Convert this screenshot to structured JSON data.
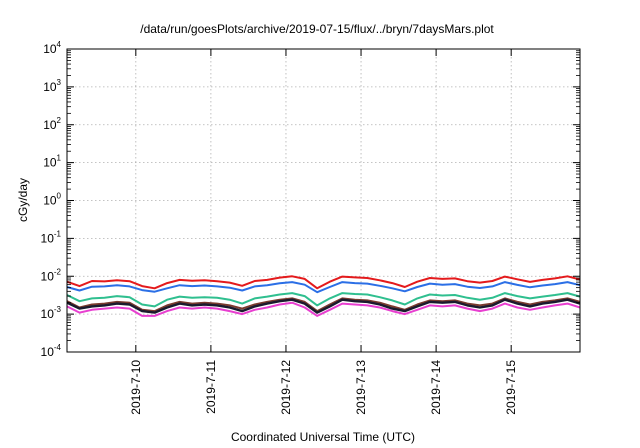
{
  "chart_data": {
    "type": "line",
    "title": "/data/run/goesPlots/archive/2019-07-15/flux/../bryn/7daysMars.plot",
    "xlabel": "Coordinated Universal Time (UTC)",
    "ylabel": "cGy/day",
    "y_scale": "log",
    "ylim": [
      0.0001,
      10000
    ],
    "y_ticks": [
      {
        "base": "10",
        "exp": "4"
      },
      {
        "base": "10",
        "exp": "3"
      },
      {
        "base": "10",
        "exp": "2"
      },
      {
        "base": "10",
        "exp": "1"
      },
      {
        "base": "10",
        "exp": "0"
      },
      {
        "base": "10",
        "exp": "-1"
      },
      {
        "base": "10",
        "exp": "-2"
      },
      {
        "base": "10",
        "exp": "-3"
      },
      {
        "base": "10",
        "exp": "-4"
      }
    ],
    "xlim": [
      "2019-07-09T02:00",
      "2019-07-15T22:00"
    ],
    "x_ticks": [
      "2019-7-10",
      "2019-7-11",
      "2019-7-12",
      "2019-7-13",
      "2019-7-14",
      "2019-7-15"
    ],
    "grid": true,
    "legend": "none",
    "series_colors": [
      "#e41a1c",
      "#2b6fe6",
      "#2fbf8f",
      "#7a3b2e",
      "#1a1a2e",
      "#e83fd0"
    ],
    "x": [
      "2019-07-09T02:00",
      "2019-07-09T06:00",
      "2019-07-09T10:00",
      "2019-07-09T14:00",
      "2019-07-09T18:00",
      "2019-07-09T22:00",
      "2019-07-10T02:00",
      "2019-07-10T06:00",
      "2019-07-10T10:00",
      "2019-07-10T14:00",
      "2019-07-10T18:00",
      "2019-07-10T22:00",
      "2019-07-11T02:00",
      "2019-07-11T06:00",
      "2019-07-11T10:00",
      "2019-07-11T14:00",
      "2019-07-11T18:00",
      "2019-07-11T22:00",
      "2019-07-12T02:00",
      "2019-07-12T06:00",
      "2019-07-12T10:00",
      "2019-07-12T14:00",
      "2019-07-12T18:00",
      "2019-07-12T22:00",
      "2019-07-13T02:00",
      "2019-07-13T06:00",
      "2019-07-13T10:00",
      "2019-07-13T14:00",
      "2019-07-13T18:00",
      "2019-07-13T22:00",
      "2019-07-14T02:00",
      "2019-07-14T06:00",
      "2019-07-14T10:00",
      "2019-07-14T14:00",
      "2019-07-14T18:00",
      "2019-07-14T22:00",
      "2019-07-15T02:00",
      "2019-07-15T06:00",
      "2019-07-15T10:00",
      "2019-07-15T14:00",
      "2019-07-15T18:00",
      "2019-07-15T22:00"
    ],
    "series": [
      {
        "values": [
          0.0072,
          0.0055,
          0.0075,
          0.0073,
          0.0078,
          0.0074,
          0.0055,
          0.0048,
          0.0066,
          0.008,
          0.0076,
          0.0078,
          0.0074,
          0.0068,
          0.0056,
          0.0075,
          0.008,
          0.0092,
          0.01,
          0.0085,
          0.0048,
          0.0072,
          0.0098,
          0.0093,
          0.009,
          0.0078,
          0.0066,
          0.0052,
          0.0072,
          0.009,
          0.0085,
          0.0088,
          0.0074,
          0.0068,
          0.0075,
          0.0098,
          0.0083,
          0.0071,
          0.008,
          0.0088,
          0.01,
          0.0082
        ]
      },
      {
        "values": [
          0.0052,
          0.0042,
          0.0053,
          0.0054,
          0.0058,
          0.0054,
          0.0043,
          0.0039,
          0.0048,
          0.0058,
          0.0055,
          0.0057,
          0.0054,
          0.005,
          0.0042,
          0.0054,
          0.0058,
          0.0065,
          0.007,
          0.006,
          0.0038,
          0.0052,
          0.007,
          0.0066,
          0.0064,
          0.0056,
          0.0048,
          0.004,
          0.0052,
          0.0064,
          0.006,
          0.0062,
          0.0053,
          0.0049,
          0.0054,
          0.007,
          0.0059,
          0.0051,
          0.0057,
          0.0062,
          0.007,
          0.0058
        ]
      },
      {
        "values": [
          0.0032,
          0.0022,
          0.0026,
          0.0027,
          0.003,
          0.0028,
          0.0018,
          0.0016,
          0.0024,
          0.0029,
          0.0027,
          0.0028,
          0.0027,
          0.0024,
          0.0019,
          0.0026,
          0.0029,
          0.0033,
          0.0036,
          0.003,
          0.0017,
          0.0026,
          0.0036,
          0.0034,
          0.0033,
          0.0028,
          0.0023,
          0.0018,
          0.0026,
          0.0033,
          0.0031,
          0.0032,
          0.0027,
          0.0024,
          0.0027,
          0.0036,
          0.003,
          0.0026,
          0.0029,
          0.0032,
          0.0036,
          0.0029
        ]
      },
      {
        "values": [
          0.0022,
          0.0015,
          0.0018,
          0.0019,
          0.0021,
          0.002,
          0.0013,
          0.0012,
          0.0017,
          0.0021,
          0.0019,
          0.002,
          0.0019,
          0.0017,
          0.0014,
          0.0018,
          0.0021,
          0.0024,
          0.0026,
          0.0021,
          0.0012,
          0.0018,
          0.0026,
          0.0024,
          0.0023,
          0.002,
          0.0016,
          0.0013,
          0.0018,
          0.0023,
          0.0022,
          0.0023,
          0.0019,
          0.0017,
          0.0019,
          0.0026,
          0.0021,
          0.0018,
          0.0021,
          0.0023,
          0.0026,
          0.0021
        ]
      },
      {
        "values": [
          0.002,
          0.0014,
          0.0016,
          0.0017,
          0.0019,
          0.0018,
          0.0012,
          0.0011,
          0.0015,
          0.0019,
          0.0017,
          0.0018,
          0.0017,
          0.0015,
          0.0012,
          0.0016,
          0.0019,
          0.0022,
          0.0024,
          0.0019,
          0.0011,
          0.0016,
          0.0024,
          0.0022,
          0.0021,
          0.0018,
          0.0014,
          0.0012,
          0.0016,
          0.0021,
          0.002,
          0.0021,
          0.0017,
          0.0015,
          0.0017,
          0.0024,
          0.0019,
          0.0016,
          0.0019,
          0.0021,
          0.0024,
          0.0019
        ]
      },
      {
        "values": [
          0.0016,
          0.0011,
          0.0013,
          0.0014,
          0.0015,
          0.0014,
          0.0009,
          0.0009,
          0.0012,
          0.0015,
          0.0014,
          0.0015,
          0.0014,
          0.0012,
          0.001,
          0.0013,
          0.0015,
          0.0018,
          0.002,
          0.0015,
          0.0009,
          0.0013,
          0.0019,
          0.0018,
          0.0017,
          0.0015,
          0.0012,
          0.001,
          0.0013,
          0.0017,
          0.0016,
          0.0017,
          0.0014,
          0.0012,
          0.0014,
          0.0019,
          0.0015,
          0.0013,
          0.0015,
          0.0017,
          0.0019,
          0.0015
        ]
      }
    ]
  }
}
